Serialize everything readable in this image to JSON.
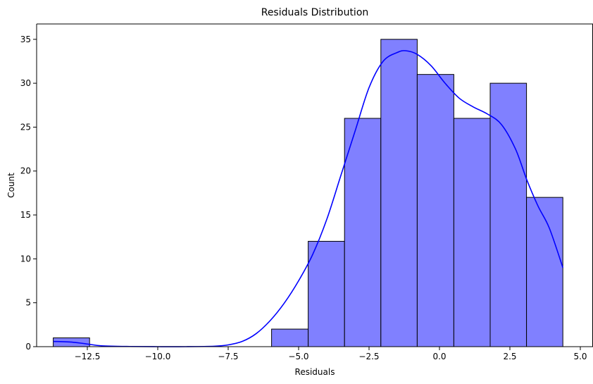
{
  "chart_data": {
    "type": "histogram",
    "title": "Residuals Distribution",
    "xlabel": "Residuals",
    "ylabel": "Count",
    "xlim": [
      -14.3,
      5.45
    ],
    "ylim": [
      0,
      36.75
    ],
    "xticks": [
      -12.5,
      -10.0,
      -7.5,
      -5.0,
      -2.5,
      0.0,
      2.5,
      5.0
    ],
    "xtick_labels": [
      "−12.5",
      "−10.0",
      "−7.5",
      "−5.0",
      "−2.5",
      "0.0",
      "2.5",
      "5.0"
    ],
    "yticks": [
      0,
      5,
      10,
      15,
      20,
      25,
      30,
      35
    ],
    "ytick_labels": [
      "0",
      "5",
      "10",
      "15",
      "20",
      "25",
      "30",
      "35"
    ],
    "bins": [
      {
        "x0": -13.71,
        "x1": -12.42,
        "count": 1
      },
      {
        "x0": -12.42,
        "x1": -11.13,
        "count": 0
      },
      {
        "x0": -11.13,
        "x1": -9.83,
        "count": 0
      },
      {
        "x0": -9.83,
        "x1": -8.54,
        "count": 0
      },
      {
        "x0": -8.54,
        "x1": -7.25,
        "count": 0
      },
      {
        "x0": -7.25,
        "x1": -5.96,
        "count": 0
      },
      {
        "x0": -5.96,
        "x1": -4.66,
        "count": 2
      },
      {
        "x0": -4.66,
        "x1": -3.37,
        "count": 12
      },
      {
        "x0": -3.37,
        "x1": -2.08,
        "count": 26
      },
      {
        "x0": -2.08,
        "x1": -0.79,
        "count": 35
      },
      {
        "x0": -0.79,
        "x1": 0.51,
        "count": 31
      },
      {
        "x0": 0.51,
        "x1": 1.8,
        "count": 26
      },
      {
        "x0": 1.8,
        "x1": 3.09,
        "count": 30
      },
      {
        "x0": 3.09,
        "x1": 4.38,
        "count": 17
      }
    ],
    "kde": {
      "x": [
        -13.71,
        -13.0,
        -12.5,
        -12.0,
        -11.0,
        -10.0,
        -9.0,
        -8.0,
        -7.5,
        -7.0,
        -6.5,
        -6.0,
        -5.5,
        -5.0,
        -4.5,
        -4.0,
        -3.5,
        -3.0,
        -2.5,
        -2.0,
        -1.5,
        -1.2,
        -0.8,
        -0.3,
        0.2,
        0.7,
        1.2,
        1.7,
        2.2,
        2.7,
        3.1,
        3.5,
        3.9,
        4.38
      ],
      "y": [
        0.6,
        0.5,
        0.3,
        0.1,
        0.02,
        0.0,
        0.0,
        0.05,
        0.2,
        0.6,
        1.5,
        3.0,
        5.0,
        7.5,
        10.5,
        14.5,
        19.5,
        24.5,
        29.5,
        32.5,
        33.5,
        33.7,
        33.3,
        32.0,
        30.0,
        28.3,
        27.3,
        26.5,
        25.3,
        22.5,
        19.0,
        16.0,
        13.5,
        9.0
      ]
    },
    "bar_color": "#8080ff",
    "bar_edge_color": "#000000",
    "line_color": "#0000ff",
    "grid": false,
    "legend": "none"
  }
}
